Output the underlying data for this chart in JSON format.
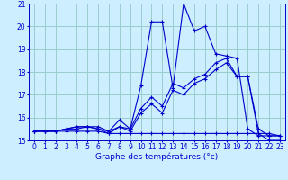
{
  "title": "Graphe des températures (°c)",
  "background_color": "#cceeff",
  "line_color": "#0000cc",
  "grid_color": "#99cccc",
  "xlim": [
    -0.5,
    23.5
  ],
  "ylim": [
    15,
    21
  ],
  "xticks": [
    0,
    1,
    2,
    3,
    4,
    5,
    6,
    7,
    8,
    9,
    10,
    11,
    12,
    13,
    14,
    15,
    16,
    17,
    18,
    19,
    20,
    21,
    22,
    23
  ],
  "yticks": [
    15,
    16,
    17,
    18,
    19,
    20,
    21
  ],
  "series": [
    {
      "x": [
        0,
        1,
        2,
        3,
        4,
        5,
        6,
        7,
        8,
        9,
        10,
        11,
        12,
        13,
        14,
        15,
        16,
        17,
        18,
        19,
        20,
        21,
        22,
        23
      ],
      "y": [
        15.4,
        15.4,
        15.4,
        15.4,
        15.4,
        15.4,
        15.4,
        15.3,
        15.3,
        15.3,
        15.3,
        15.3,
        15.3,
        15.3,
        15.3,
        15.3,
        15.3,
        15.3,
        15.3,
        15.3,
        15.3,
        15.3,
        15.3,
        15.2
      ]
    },
    {
      "x": [
        0,
        1,
        2,
        3,
        4,
        5,
        6,
        7,
        8,
        9,
        10,
        11,
        12,
        13,
        14,
        15,
        16,
        17,
        18,
        19,
        20,
        21,
        22,
        23
      ],
      "y": [
        15.4,
        15.4,
        15.4,
        15.5,
        15.5,
        15.6,
        15.6,
        15.4,
        15.9,
        15.5,
        17.4,
        20.2,
        20.2,
        17.3,
        21.0,
        19.8,
        20.0,
        18.8,
        18.7,
        18.6,
        15.5,
        15.2,
        15.2,
        15.2
      ]
    },
    {
      "x": [
        0,
        1,
        2,
        3,
        4,
        5,
        6,
        7,
        8,
        9,
        10,
        11,
        12,
        13,
        14,
        15,
        16,
        17,
        18,
        19,
        20,
        21,
        22,
        23
      ],
      "y": [
        15.4,
        15.4,
        15.4,
        15.5,
        15.6,
        15.6,
        15.5,
        15.4,
        15.6,
        15.5,
        16.4,
        16.9,
        16.5,
        17.5,
        17.3,
        17.7,
        17.9,
        18.4,
        18.6,
        17.8,
        17.8,
        15.5,
        15.2,
        15.2
      ]
    },
    {
      "x": [
        0,
        1,
        2,
        3,
        4,
        5,
        6,
        7,
        8,
        9,
        10,
        11,
        12,
        13,
        14,
        15,
        16,
        17,
        18,
        19,
        20,
        21,
        22,
        23
      ],
      "y": [
        15.4,
        15.4,
        15.4,
        15.5,
        15.6,
        15.6,
        15.5,
        15.3,
        15.6,
        15.4,
        16.2,
        16.6,
        16.2,
        17.2,
        17.0,
        17.5,
        17.7,
        18.1,
        18.4,
        17.8,
        17.8,
        15.3,
        15.0,
        15.0
      ]
    }
  ],
  "xlabel_fontsize": 6.5,
  "tick_fontsize": 5.5
}
